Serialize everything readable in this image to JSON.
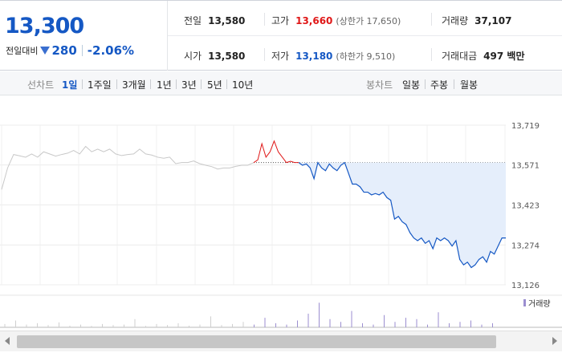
{
  "summary": {
    "price": "13,300",
    "change_label": "전일대비",
    "change_value": "280",
    "change_pct": "-2.06%",
    "prev_close_label": "전일",
    "prev_close": "13,580",
    "high_label": "고가",
    "high": "13,660",
    "upper_limit": "(상한가 17,650)",
    "volume_label": "거래량",
    "volume": "37,107",
    "open_label": "시가",
    "open": "13,580",
    "low_label": "저가",
    "low": "13,180",
    "lower_limit": "(하한가 9,510)",
    "amount_label": "거래대금",
    "amount": "497 백만"
  },
  "toolbar": {
    "line_chart_label": "선차트",
    "periods": [
      "1일",
      "1주일",
      "3개월",
      "1년",
      "3년",
      "5년",
      "10년"
    ],
    "selected_period": "1일",
    "candle_chart_label": "봉차트",
    "candles": [
      "일봉",
      "주봉",
      "월봉"
    ]
  },
  "colors": {
    "accent": "#1558c4",
    "up": "#e01818",
    "down": "#1558c4",
    "fill": "#e5eefb",
    "pre_line": "#c8c8c8",
    "volume": "#9b8ed0"
  },
  "chart_data": {
    "type": "line",
    "y_ticks": [
      "13,719",
      "13,571",
      "13,423",
      "13,274",
      "13,126"
    ],
    "ylim": [
      13126,
      13719
    ],
    "baseline": 13580,
    "volume_legend": "거래량",
    "series": [
      {
        "name": "prev",
        "values": [
          13480,
          13560,
          13610,
          13605,
          13600,
          13612,
          13600,
          13620,
          13612,
          13604,
          13610,
          13615,
          13625,
          13612,
          13640,
          13620,
          13630,
          13620,
          13630,
          13612,
          13606,
          13610,
          13612,
          13630,
          13612,
          13608,
          13600,
          13596,
          13600,
          13576,
          13580,
          13580,
          13586,
          13576,
          13570,
          13565,
          13556,
          13560,
          13560,
          13566,
          13570,
          13570,
          13580
        ]
      },
      {
        "name": "up",
        "values": [
          13580,
          13590,
          13650,
          13600,
          13620,
          13660,
          13620,
          13600,
          13580,
          13585,
          13580,
          13580
        ]
      },
      {
        "name": "down",
        "values": [
          13580,
          13570,
          13575,
          13560,
          13520,
          13580,
          13560,
          13550,
          13575,
          13560,
          13550,
          13570,
          13580,
          13540,
          13500,
          13500,
          13490,
          13470,
          13470,
          13460,
          13465,
          13460,
          13470,
          13450,
          13440,
          13370,
          13380,
          13360,
          13350,
          13320,
          13300,
          13290,
          13300,
          13280,
          13290,
          13260,
          13300,
          13290,
          13300,
          13290,
          13270,
          13290,
          13220,
          13200,
          13210,
          13190,
          13200,
          13220,
          13230,
          13210,
          13250,
          13240,
          13270,
          13300,
          13300
        ]
      },
      {
        "name": "volume",
        "values": [
          0.12,
          0.25,
          0.1,
          0.15,
          0.08,
          0.18,
          0.06,
          0.1,
          0.05,
          0.12,
          0.08,
          0.1,
          0.3,
          0.05,
          0.12,
          0.08,
          0.15,
          0.06,
          0.1,
          0.4,
          0.08,
          0.12,
          0.2,
          0.1,
          0.35,
          0.15,
          0.1,
          0.25,
          0.5,
          0.9,
          0.3,
          0.2,
          0.6,
          0.15,
          0.1,
          0.45,
          0.2,
          0.35,
          0.3,
          0.1,
          0.55,
          0.15,
          0.2,
          0.25,
          0.1,
          0.15
        ]
      }
    ]
  }
}
